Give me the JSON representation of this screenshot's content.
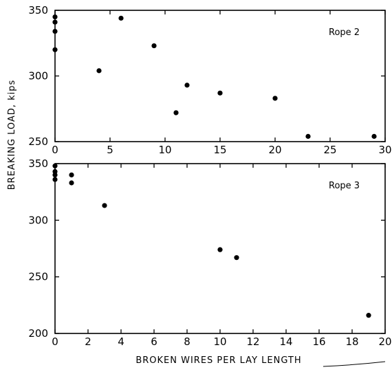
{
  "figure": {
    "ylabel": "BREAKING LOAD, kips",
    "xlabel": "BROKEN WIRES PER LAY LENGTH"
  },
  "chart_data": [
    {
      "type": "scatter",
      "label": "Rope 2",
      "xlim": [
        0,
        30
      ],
      "ylim": [
        250,
        350
      ],
      "xticks": [
        0,
        5,
        10,
        15,
        20,
        25,
        30
      ],
      "yticks": [
        250,
        300,
        350
      ],
      "points": [
        {
          "x": 0,
          "y": 345
        },
        {
          "x": 0,
          "y": 341
        },
        {
          "x": 0,
          "y": 334
        },
        {
          "x": 0,
          "y": 320
        },
        {
          "x": 4,
          "y": 304
        },
        {
          "x": 6,
          "y": 344
        },
        {
          "x": 9,
          "y": 323
        },
        {
          "x": 11,
          "y": 272
        },
        {
          "x": 12,
          "y": 293
        },
        {
          "x": 15,
          "y": 287
        },
        {
          "x": 20,
          "y": 283
        },
        {
          "x": 23,
          "y": 254
        },
        {
          "x": 29,
          "y": 254
        }
      ]
    },
    {
      "type": "scatter",
      "label": "Rope 3",
      "xlim": [
        0,
        20
      ],
      "ylim": [
        200,
        350
      ],
      "xticks": [
        0,
        2,
        4,
        6,
        8,
        10,
        12,
        14,
        16,
        18,
        20
      ],
      "yticks": [
        200,
        250,
        300,
        350
      ],
      "points": [
        {
          "x": 0,
          "y": 348
        },
        {
          "x": 0,
          "y": 343
        },
        {
          "x": 0,
          "y": 340
        },
        {
          "x": 0,
          "y": 336
        },
        {
          "x": 1,
          "y": 340
        },
        {
          "x": 1,
          "y": 333
        },
        {
          "x": 3,
          "y": 313
        },
        {
          "x": 10,
          "y": 274
        },
        {
          "x": 11,
          "y": 267
        },
        {
          "x": 19,
          "y": 216
        }
      ]
    }
  ]
}
